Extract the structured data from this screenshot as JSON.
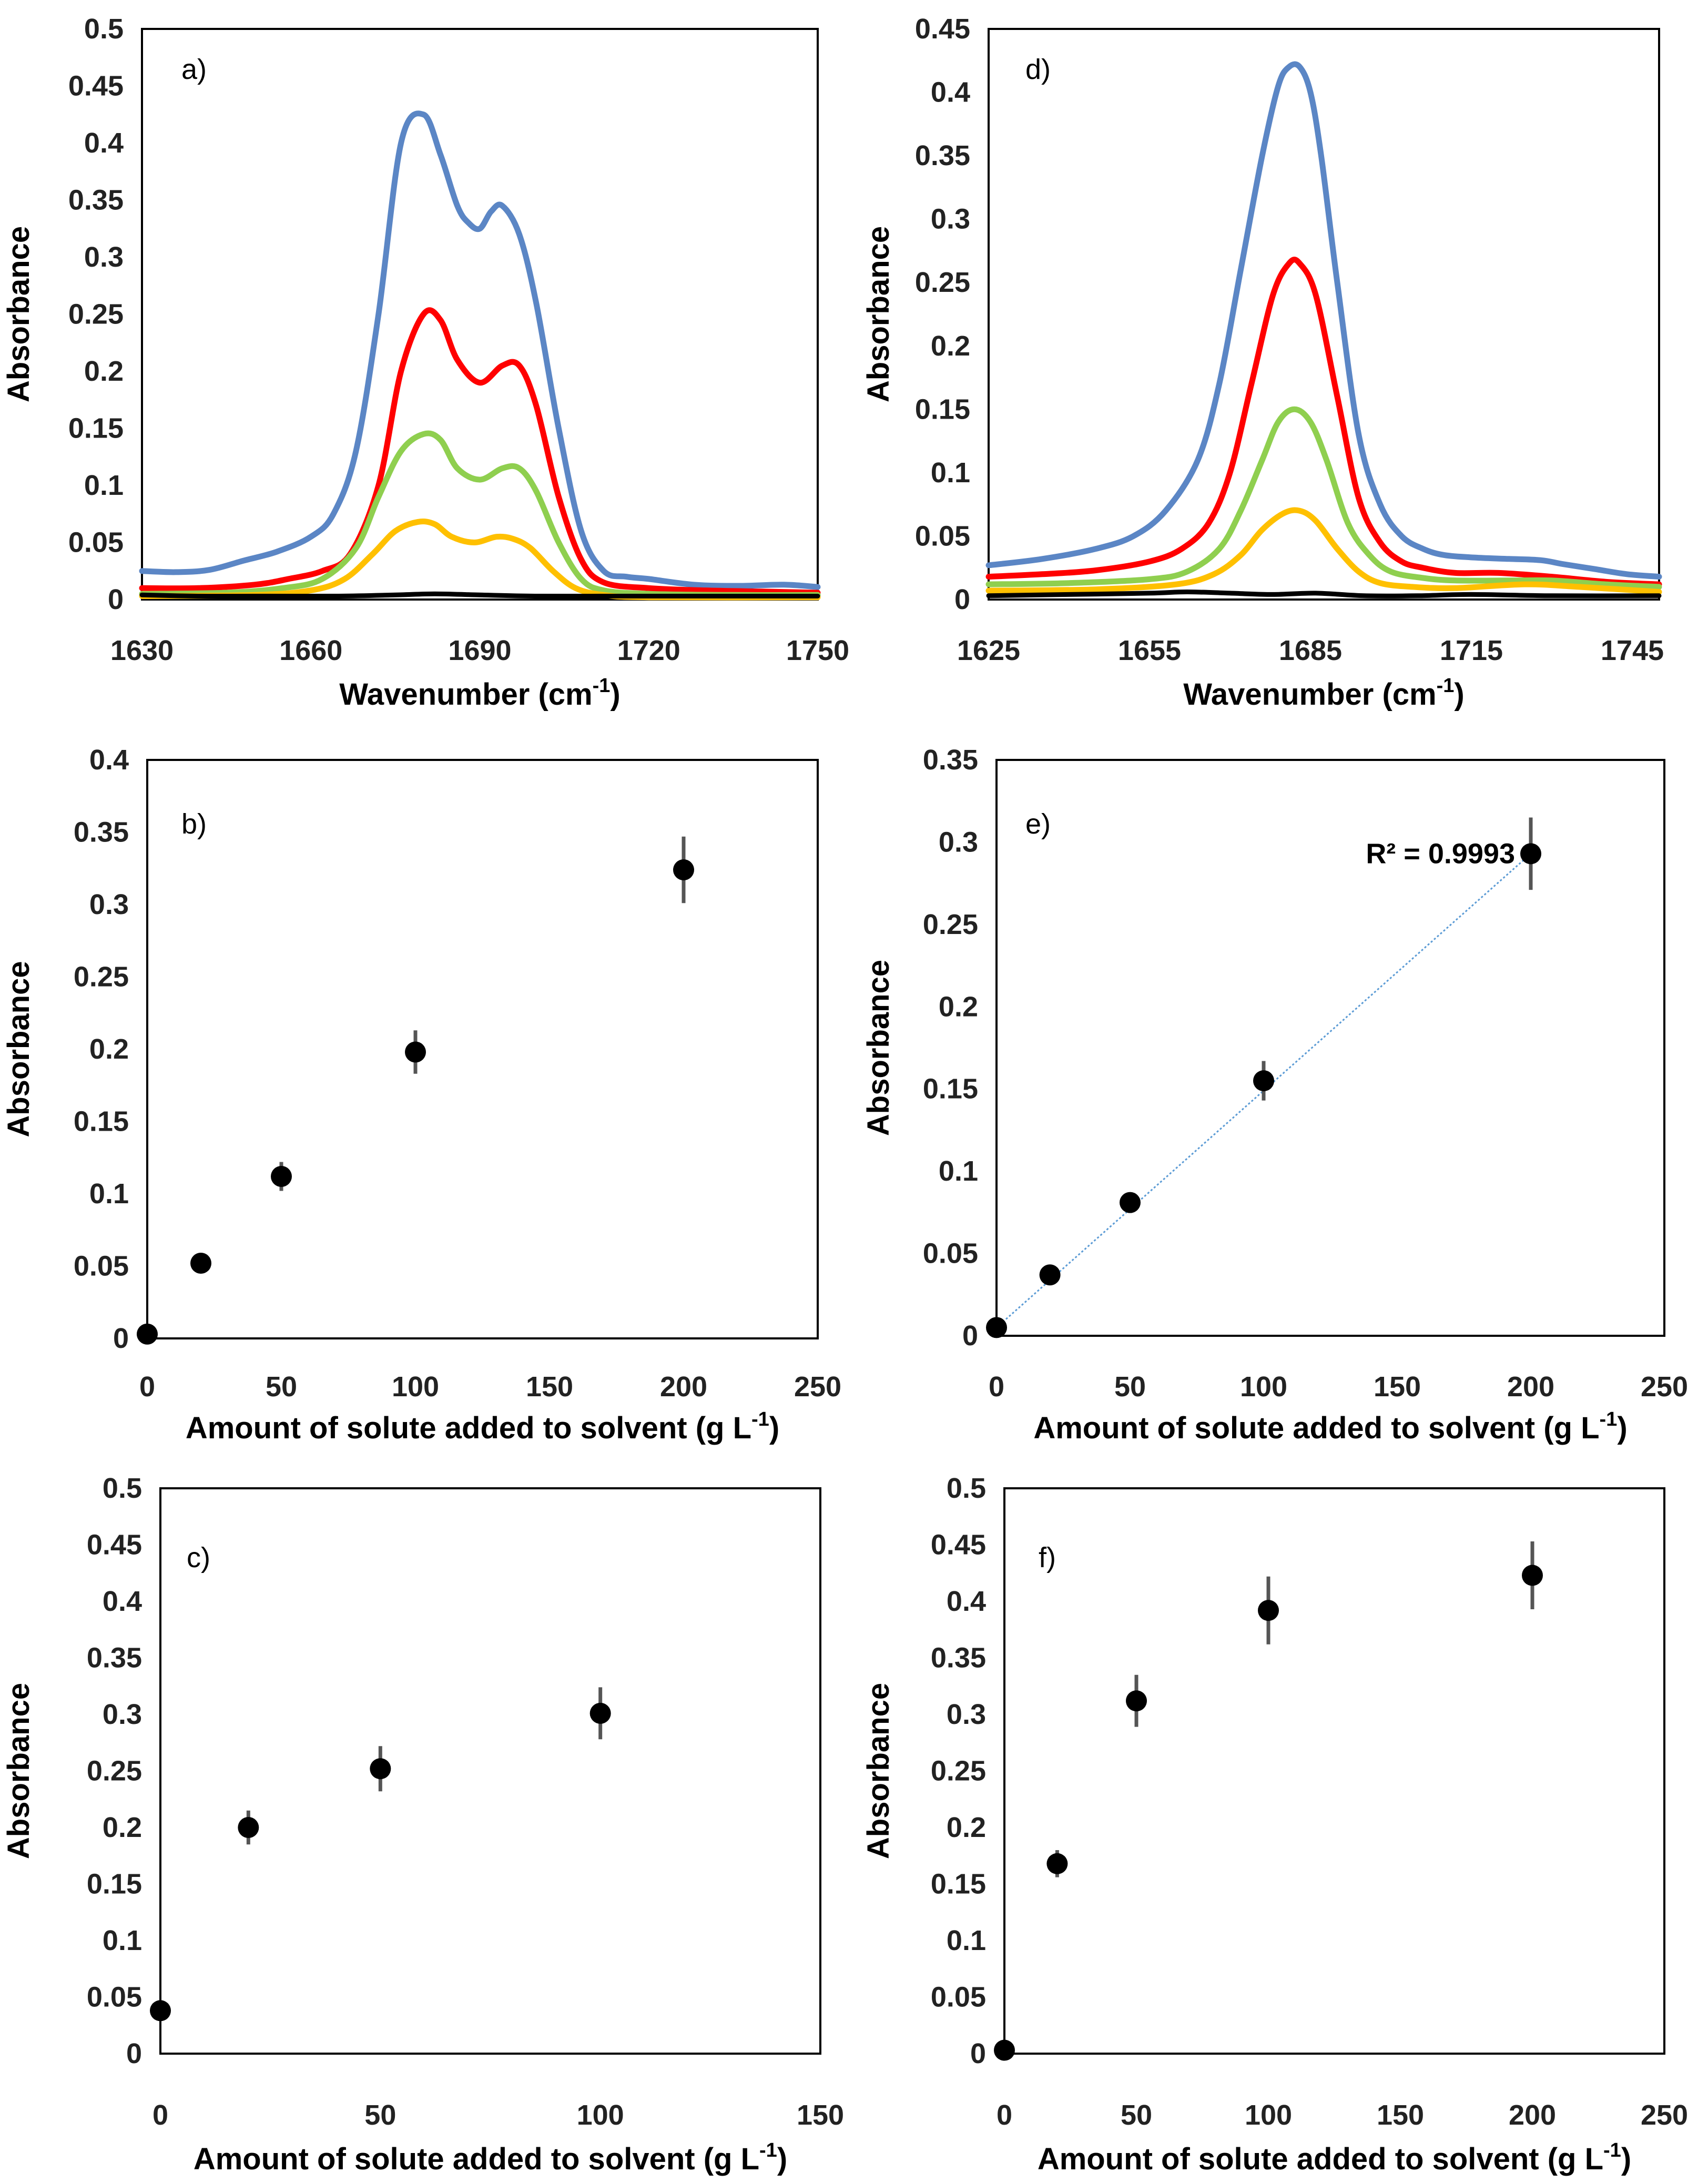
{
  "colors": {
    "blue": "#5b86c5",
    "red": "#ff0000",
    "green": "#8fcf4f",
    "yellow": "#ffc000",
    "black": "#000000",
    "trendline": "#5b9bd5"
  },
  "chart_data": [
    {
      "id": "a",
      "type": "line",
      "label": "a)",
      "xlabel": "Wavenumber (cm",
      "xlabel_sup": "-1",
      "xlabel_close": ")",
      "ylabel": "Absorbance",
      "xlim": [
        1630,
        1750
      ],
      "ylim": [
        0,
        0.5
      ],
      "xticks": [
        1630,
        1660,
        1690,
        1720,
        1750
      ],
      "yticks": [
        0,
        0.05,
        0.1,
        0.15,
        0.2,
        0.25,
        0.3,
        0.35,
        0.4,
        0.45,
        0.5
      ],
      "ytick_labels": [
        "0",
        "0.05",
        "0.1",
        "0.15",
        "0.2",
        "0.25",
        "0.3",
        "0.35",
        "0.4",
        "0.45",
        "0.5"
      ],
      "series": [
        {
          "name": "blue",
          "color": "#5b86c5",
          "x": [
            1630,
            1636,
            1642,
            1648,
            1654,
            1660,
            1664,
            1668,
            1672,
            1676,
            1680,
            1683,
            1686,
            1688,
            1690,
            1692,
            1694,
            1697,
            1700,
            1704,
            1708,
            1712,
            1716,
            1720,
            1728,
            1736,
            1744,
            1750
          ],
          "y": [
            0.025,
            0.024,
            0.026,
            0.034,
            0.042,
            0.055,
            0.075,
            0.13,
            0.25,
            0.4,
            0.425,
            0.39,
            0.345,
            0.33,
            0.325,
            0.34,
            0.345,
            0.32,
            0.26,
            0.15,
            0.06,
            0.025,
            0.02,
            0.018,
            0.013,
            0.012,
            0.013,
            0.011
          ]
        },
        {
          "name": "red",
          "color": "#ff0000",
          "x": [
            1630,
            1640,
            1650,
            1656,
            1662,
            1667,
            1672,
            1676,
            1680,
            1683,
            1686,
            1690,
            1694,
            1697,
            1700,
            1704,
            1708,
            1712,
            1720,
            1730,
            1740,
            1750
          ],
          "y": [
            0.01,
            0.01,
            0.013,
            0.018,
            0.025,
            0.04,
            0.1,
            0.2,
            0.25,
            0.245,
            0.21,
            0.19,
            0.205,
            0.205,
            0.17,
            0.09,
            0.035,
            0.015,
            0.01,
            0.008,
            0.007,
            0.006
          ]
        },
        {
          "name": "green",
          "color": "#8fcf4f",
          "x": [
            1630,
            1645,
            1655,
            1662,
            1668,
            1672,
            1676,
            1680,
            1683,
            1686,
            1690,
            1694,
            1697,
            1700,
            1704,
            1708,
            1712,
            1720,
            1735,
            1750
          ],
          "y": [
            0.005,
            0.006,
            0.01,
            0.018,
            0.045,
            0.09,
            0.13,
            0.145,
            0.14,
            0.115,
            0.105,
            0.115,
            0.115,
            0.095,
            0.05,
            0.018,
            0.008,
            0.005,
            0.004,
            0.004
          ]
        },
        {
          "name": "yellow",
          "color": "#ffc000",
          "x": [
            1630,
            1650,
            1660,
            1666,
            1671,
            1675,
            1679,
            1682,
            1685,
            1689,
            1693,
            1696,
            1699,
            1703,
            1707,
            1712,
            1720,
            1750
          ],
          "y": [
            0.003,
            0.004,
            0.008,
            0.018,
            0.04,
            0.06,
            0.068,
            0.066,
            0.055,
            0.05,
            0.055,
            0.053,
            0.045,
            0.025,
            0.01,
            0.004,
            0.002,
            0.002
          ]
        },
        {
          "name": "black",
          "color": "#000000",
          "x": [
            1630,
            1640,
            1650,
            1665,
            1675,
            1682,
            1690,
            1700,
            1715,
            1730,
            1750
          ],
          "y": [
            0.004,
            0.003,
            0.003,
            0.003,
            0.004,
            0.005,
            0.004,
            0.003,
            0.003,
            0.003,
            0.003
          ]
        }
      ]
    },
    {
      "id": "d",
      "type": "line",
      "label": "d)",
      "xlabel": "Wavenumber (cm",
      "xlabel_sup": "-1",
      "xlabel_close": ")",
      "ylabel": "Absorbance",
      "xlim": [
        1625,
        1750
      ],
      "ylim": [
        0,
        0.45
      ],
      "xticks": [
        1625,
        1655,
        1685,
        1715,
        1745
      ],
      "yticks": [
        0,
        0.05,
        0.1,
        0.15,
        0.2,
        0.25,
        0.3,
        0.35,
        0.4,
        0.45
      ],
      "ytick_labels": [
        "0",
        "0.05",
        "0.1",
        "0.15",
        "0.2",
        "0.25",
        "0.3",
        "0.35",
        "0.4",
        "0.45"
      ],
      "series": [
        {
          "name": "blue",
          "color": "#5b86c5",
          "x": [
            1625,
            1635,
            1645,
            1652,
            1658,
            1664,
            1668,
            1672,
            1676,
            1679,
            1681,
            1683,
            1685,
            1687,
            1690,
            1694,
            1698,
            1702,
            1706,
            1710,
            1716,
            1722,
            1728,
            1732,
            1738,
            1744,
            1750
          ],
          "y": [
            0.027,
            0.032,
            0.04,
            0.05,
            0.07,
            0.11,
            0.17,
            0.26,
            0.35,
            0.405,
            0.42,
            0.42,
            0.4,
            0.35,
            0.25,
            0.13,
            0.075,
            0.05,
            0.04,
            0.035,
            0.033,
            0.032,
            0.031,
            0.028,
            0.024,
            0.02,
            0.018
          ]
        },
        {
          "name": "red",
          "color": "#ff0000",
          "x": [
            1625,
            1635,
            1645,
            1655,
            1661,
            1666,
            1670,
            1674,
            1678,
            1681,
            1683,
            1686,
            1690,
            1694,
            1698,
            1702,
            1706,
            1712,
            1720,
            1730,
            1740,
            1750
          ],
          "y": [
            0.018,
            0.02,
            0.023,
            0.03,
            0.04,
            0.06,
            0.1,
            0.17,
            0.24,
            0.265,
            0.265,
            0.24,
            0.16,
            0.08,
            0.045,
            0.03,
            0.025,
            0.021,
            0.021,
            0.018,
            0.014,
            0.012
          ]
        },
        {
          "name": "green",
          "color": "#8fcf4f",
          "x": [
            1625,
            1640,
            1655,
            1662,
            1668,
            1672,
            1676,
            1679,
            1682,
            1685,
            1688,
            1692,
            1696,
            1700,
            1706,
            1712,
            1722,
            1730,
            1740,
            1750
          ],
          "y": [
            0.012,
            0.013,
            0.016,
            0.022,
            0.04,
            0.07,
            0.11,
            0.14,
            0.15,
            0.14,
            0.11,
            0.06,
            0.035,
            0.022,
            0.017,
            0.015,
            0.015,
            0.015,
            0.012,
            0.01
          ]
        },
        {
          "name": "yellow",
          "color": "#ffc000",
          "x": [
            1625,
            1645,
            1660,
            1667,
            1672,
            1676,
            1680,
            1683,
            1686,
            1690,
            1694,
            1698,
            1704,
            1712,
            1725,
            1735,
            1750
          ],
          "y": [
            0.007,
            0.008,
            0.012,
            0.02,
            0.035,
            0.055,
            0.068,
            0.07,
            0.062,
            0.04,
            0.022,
            0.013,
            0.01,
            0.009,
            0.012,
            0.01,
            0.006
          ]
        },
        {
          "name": "black",
          "color": "#000000",
          "x": [
            1625,
            1640,
            1655,
            1662,
            1670,
            1678,
            1686,
            1695,
            1705,
            1715,
            1730,
            1750
          ],
          "y": [
            0.003,
            0.004,
            0.005,
            0.006,
            0.005,
            0.004,
            0.005,
            0.003,
            0.003,
            0.004,
            0.003,
            0.003
          ]
        }
      ]
    },
    {
      "id": "b",
      "type": "scatter",
      "label": "b)",
      "xlabel": "Amount of solute added to solvent (g L",
      "xlabel_sup": "-1",
      "xlabel_close": ")",
      "ylabel": "Absorbance",
      "xlim": [
        0,
        250
      ],
      "ylim": [
        0,
        0.4
      ],
      "xticks": [
        0,
        50,
        100,
        150,
        200,
        250
      ],
      "yticks": [
        0,
        0.05,
        0.1,
        0.15,
        0.2,
        0.25,
        0.3,
        0.35,
        0.4
      ],
      "ytick_labels": [
        "0",
        "0.05",
        "0.1",
        "0.15",
        "0.2",
        "0.25",
        "0.3",
        "0.35",
        "0.4"
      ],
      "x": [
        0,
        20,
        50,
        100,
        200
      ],
      "y": [
        0.003,
        0.052,
        0.112,
        0.198,
        0.324
      ],
      "err": [
        0,
        0.004,
        0.01,
        0.015,
        0.023
      ]
    },
    {
      "id": "e",
      "type": "scatter",
      "label": "e)",
      "xlabel": "Amount of solute added to solvent (g L",
      "xlabel_sup": "-1",
      "xlabel_close": ")",
      "ylabel": "Absorbance",
      "xlim": [
        0,
        250
      ],
      "ylim": [
        0,
        0.35
      ],
      "xticks": [
        0,
        50,
        100,
        150,
        200,
        250
      ],
      "yticks": [
        0,
        0.05,
        0.1,
        0.15,
        0.2,
        0.25,
        0.3,
        0.35
      ],
      "ytick_labels": [
        "0",
        "0.05",
        "0.1",
        "0.15",
        "0.2",
        "0.25",
        "0.3",
        "0.35"
      ],
      "x": [
        0,
        20,
        50,
        100,
        200
      ],
      "y": [
        0.005,
        0.037,
        0.081,
        0.155,
        0.293
      ],
      "err": [
        0,
        0.004,
        0.005,
        0.012,
        0.022
      ],
      "trendline": {
        "x0": 0,
        "y0": 0.005,
        "x1": 200,
        "y1": 0.293
      },
      "annotation": "R² = 0.9993"
    },
    {
      "id": "c",
      "type": "scatter",
      "label": "c)",
      "xlabel": "Amount of solute added to solvent (g L",
      "xlabel_sup": "-1",
      "xlabel_close": ")",
      "ylabel": "Absorbance",
      "xlim": [
        0,
        150
      ],
      "ylim": [
        0,
        0.5
      ],
      "xticks": [
        0,
        50,
        100,
        150
      ],
      "yticks": [
        0,
        0.05,
        0.1,
        0.15,
        0.2,
        0.25,
        0.3,
        0.35,
        0.4,
        0.45,
        0.5
      ],
      "ytick_labels": [
        "0",
        "0.05",
        "0.1",
        "0.15",
        "0.2",
        "0.25",
        "0.3",
        "0.35",
        "0.4",
        "0.45",
        "0.5"
      ],
      "x": [
        0,
        20,
        50,
        100
      ],
      "y": [
        0.038,
        0.2,
        0.252,
        0.301
      ],
      "err": [
        0,
        0.015,
        0.02,
        0.023
      ]
    },
    {
      "id": "f",
      "type": "scatter",
      "label": "f)",
      "xlabel": "Amount of solute added to solvent (g L",
      "xlabel_sup": "-1",
      "xlabel_close": ")",
      "ylabel": "Absorbance",
      "xlim": [
        0,
        250
      ],
      "ylim": [
        0,
        0.5
      ],
      "xticks": [
        0,
        50,
        100,
        150,
        200,
        250
      ],
      "yticks": [
        0,
        0.05,
        0.1,
        0.15,
        0.2,
        0.25,
        0.3,
        0.35,
        0.4,
        0.45,
        0.5
      ],
      "ytick_labels": [
        "0",
        "0.05",
        "0.1",
        "0.15",
        "0.2",
        "0.25",
        "0.3",
        "0.35",
        "0.4",
        "0.45",
        "0.5"
      ],
      "x": [
        0,
        20,
        50,
        100,
        200
      ],
      "y": [
        0.003,
        0.168,
        0.312,
        0.392,
        0.423
      ],
      "err": [
        0,
        0.012,
        0.023,
        0.03,
        0.03
      ]
    }
  ]
}
